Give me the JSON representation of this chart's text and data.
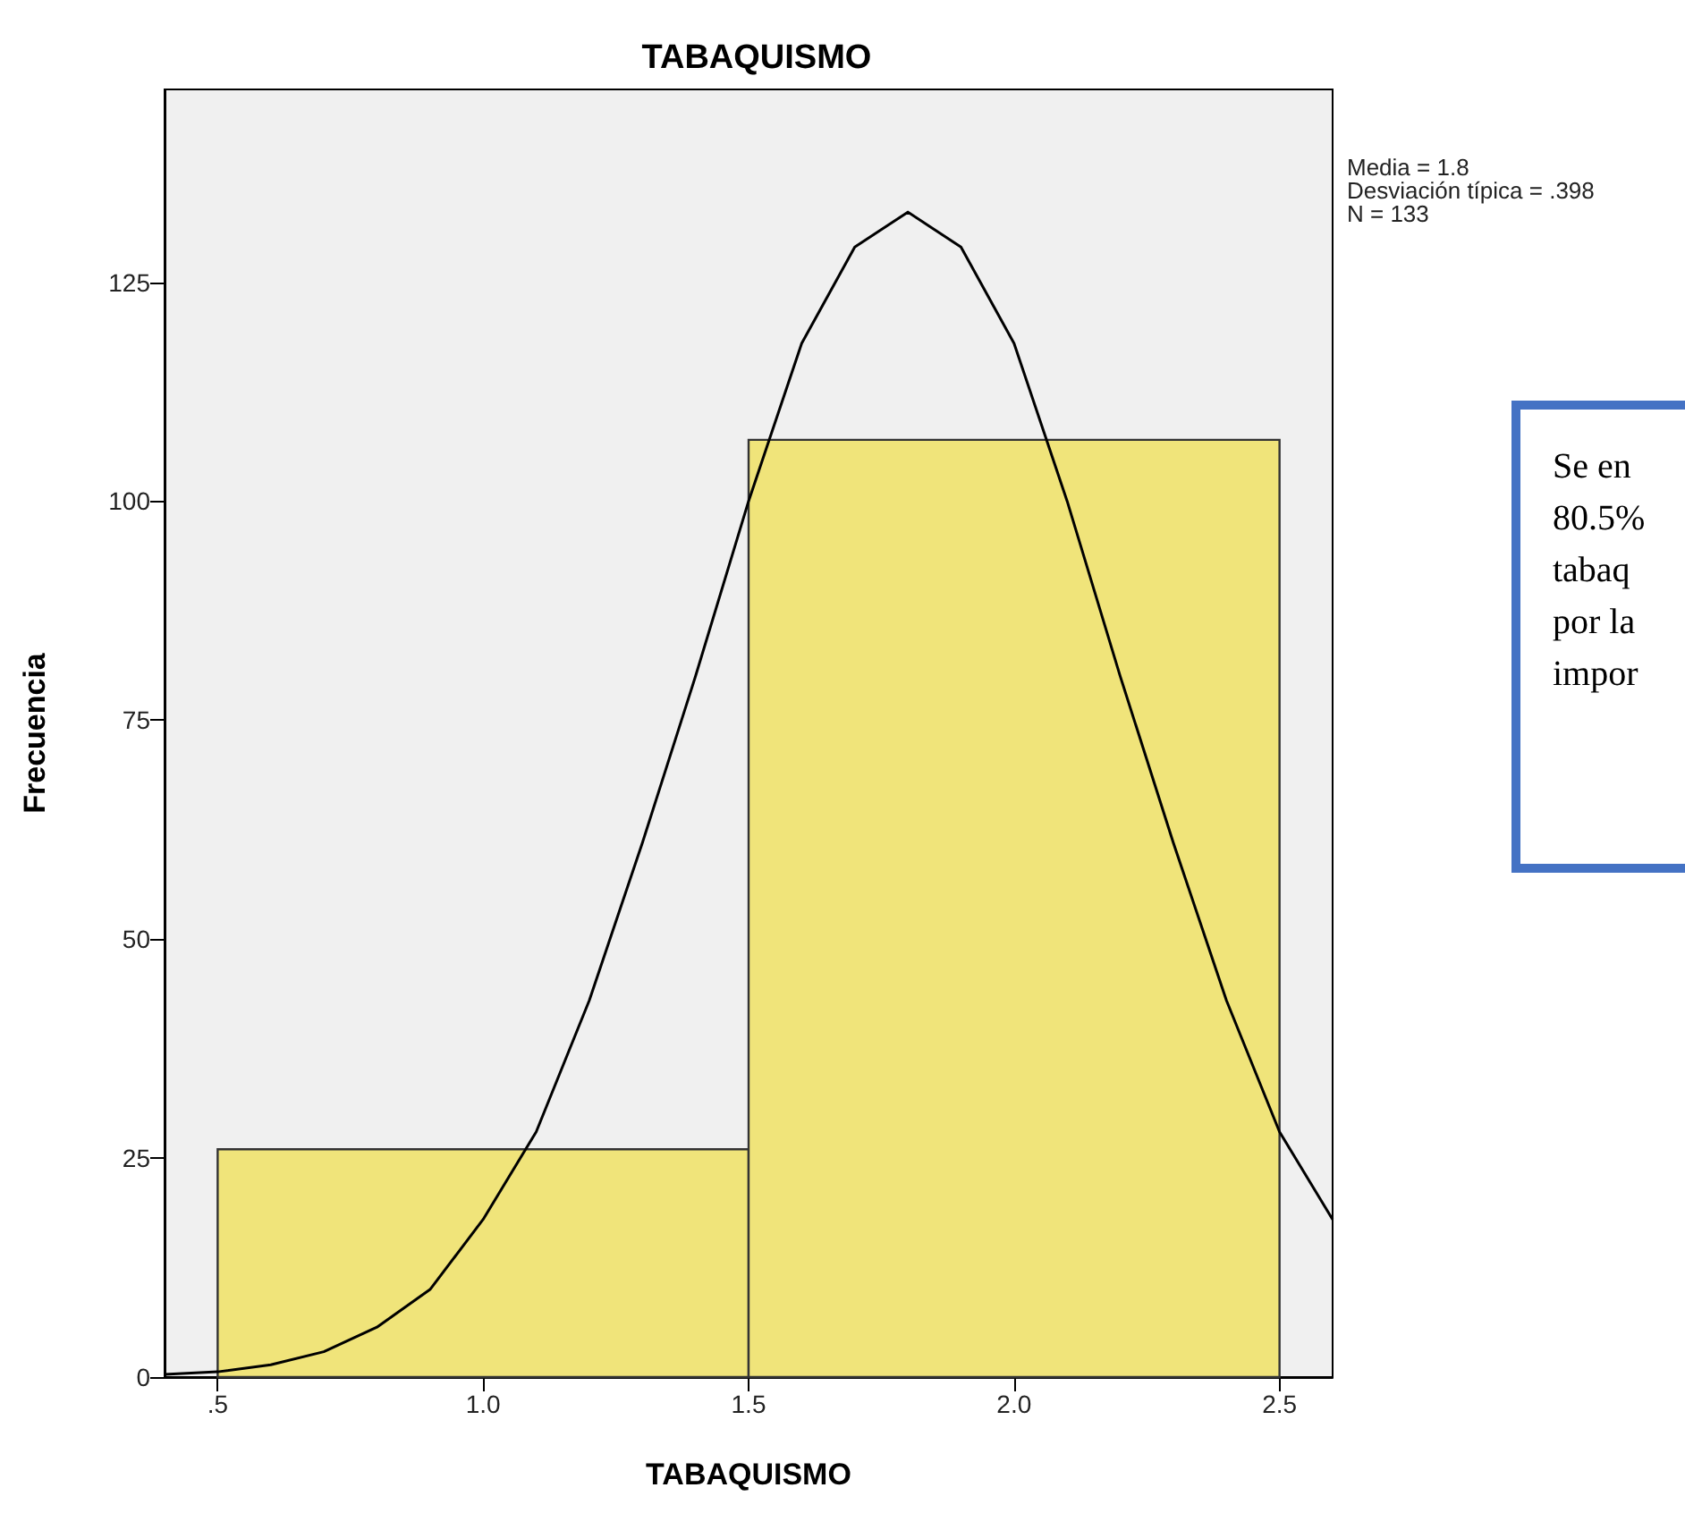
{
  "chart_data": {
    "type": "histogram",
    "title": "TABAQUISMO",
    "xlabel": "TABAQUISMO",
    "ylabel": "Frecuencia",
    "bins": [
      0.5,
      1.5,
      2.5
    ],
    "values": [
      26,
      107
    ],
    "color": "#f0e47a",
    "series": [
      {
        "type": "line",
        "color": "#000000",
        "x": [
          0.4,
          0.5,
          0.6,
          0.7,
          0.8,
          0.9,
          1.0,
          1.1,
          1.2,
          1.3,
          1.4,
          1.5,
          1.6,
          1.7,
          1.8,
          1.9,
          2.0,
          2.1,
          2.2,
          2.3,
          2.4,
          2.5,
          2.6
        ],
        "values": [
          0.3,
          0.6,
          1.4,
          2.9,
          5.7,
          10,
          18,
          28,
          43,
          61,
          80,
          100,
          118,
          129,
          133,
          129,
          118,
          100,
          80,
          61,
          43,
          28,
          18
        ]
      }
    ],
    "xlim": [
      0.4,
      2.6
    ],
    "xticks": [
      {
        "value": 0.5,
        "label": ".5"
      },
      {
        "value": 1.0,
        "label": "1.0"
      },
      {
        "value": 1.5,
        "label": "1.5"
      },
      {
        "value": 2.0,
        "label": "2.0"
      },
      {
        "value": 2.5,
        "label": "2.5"
      }
    ],
    "ylim": [
      0,
      147
    ],
    "yticks": [
      0,
      25,
      50,
      75,
      100,
      125
    ],
    "grid": false,
    "marker": "none",
    "annotations": [
      "Media = 1.8\nDesviación típica = .398\nN = 133",
      "Se en\n80.5%\ntabaq\npor la\nimpor"
    ]
  }
}
